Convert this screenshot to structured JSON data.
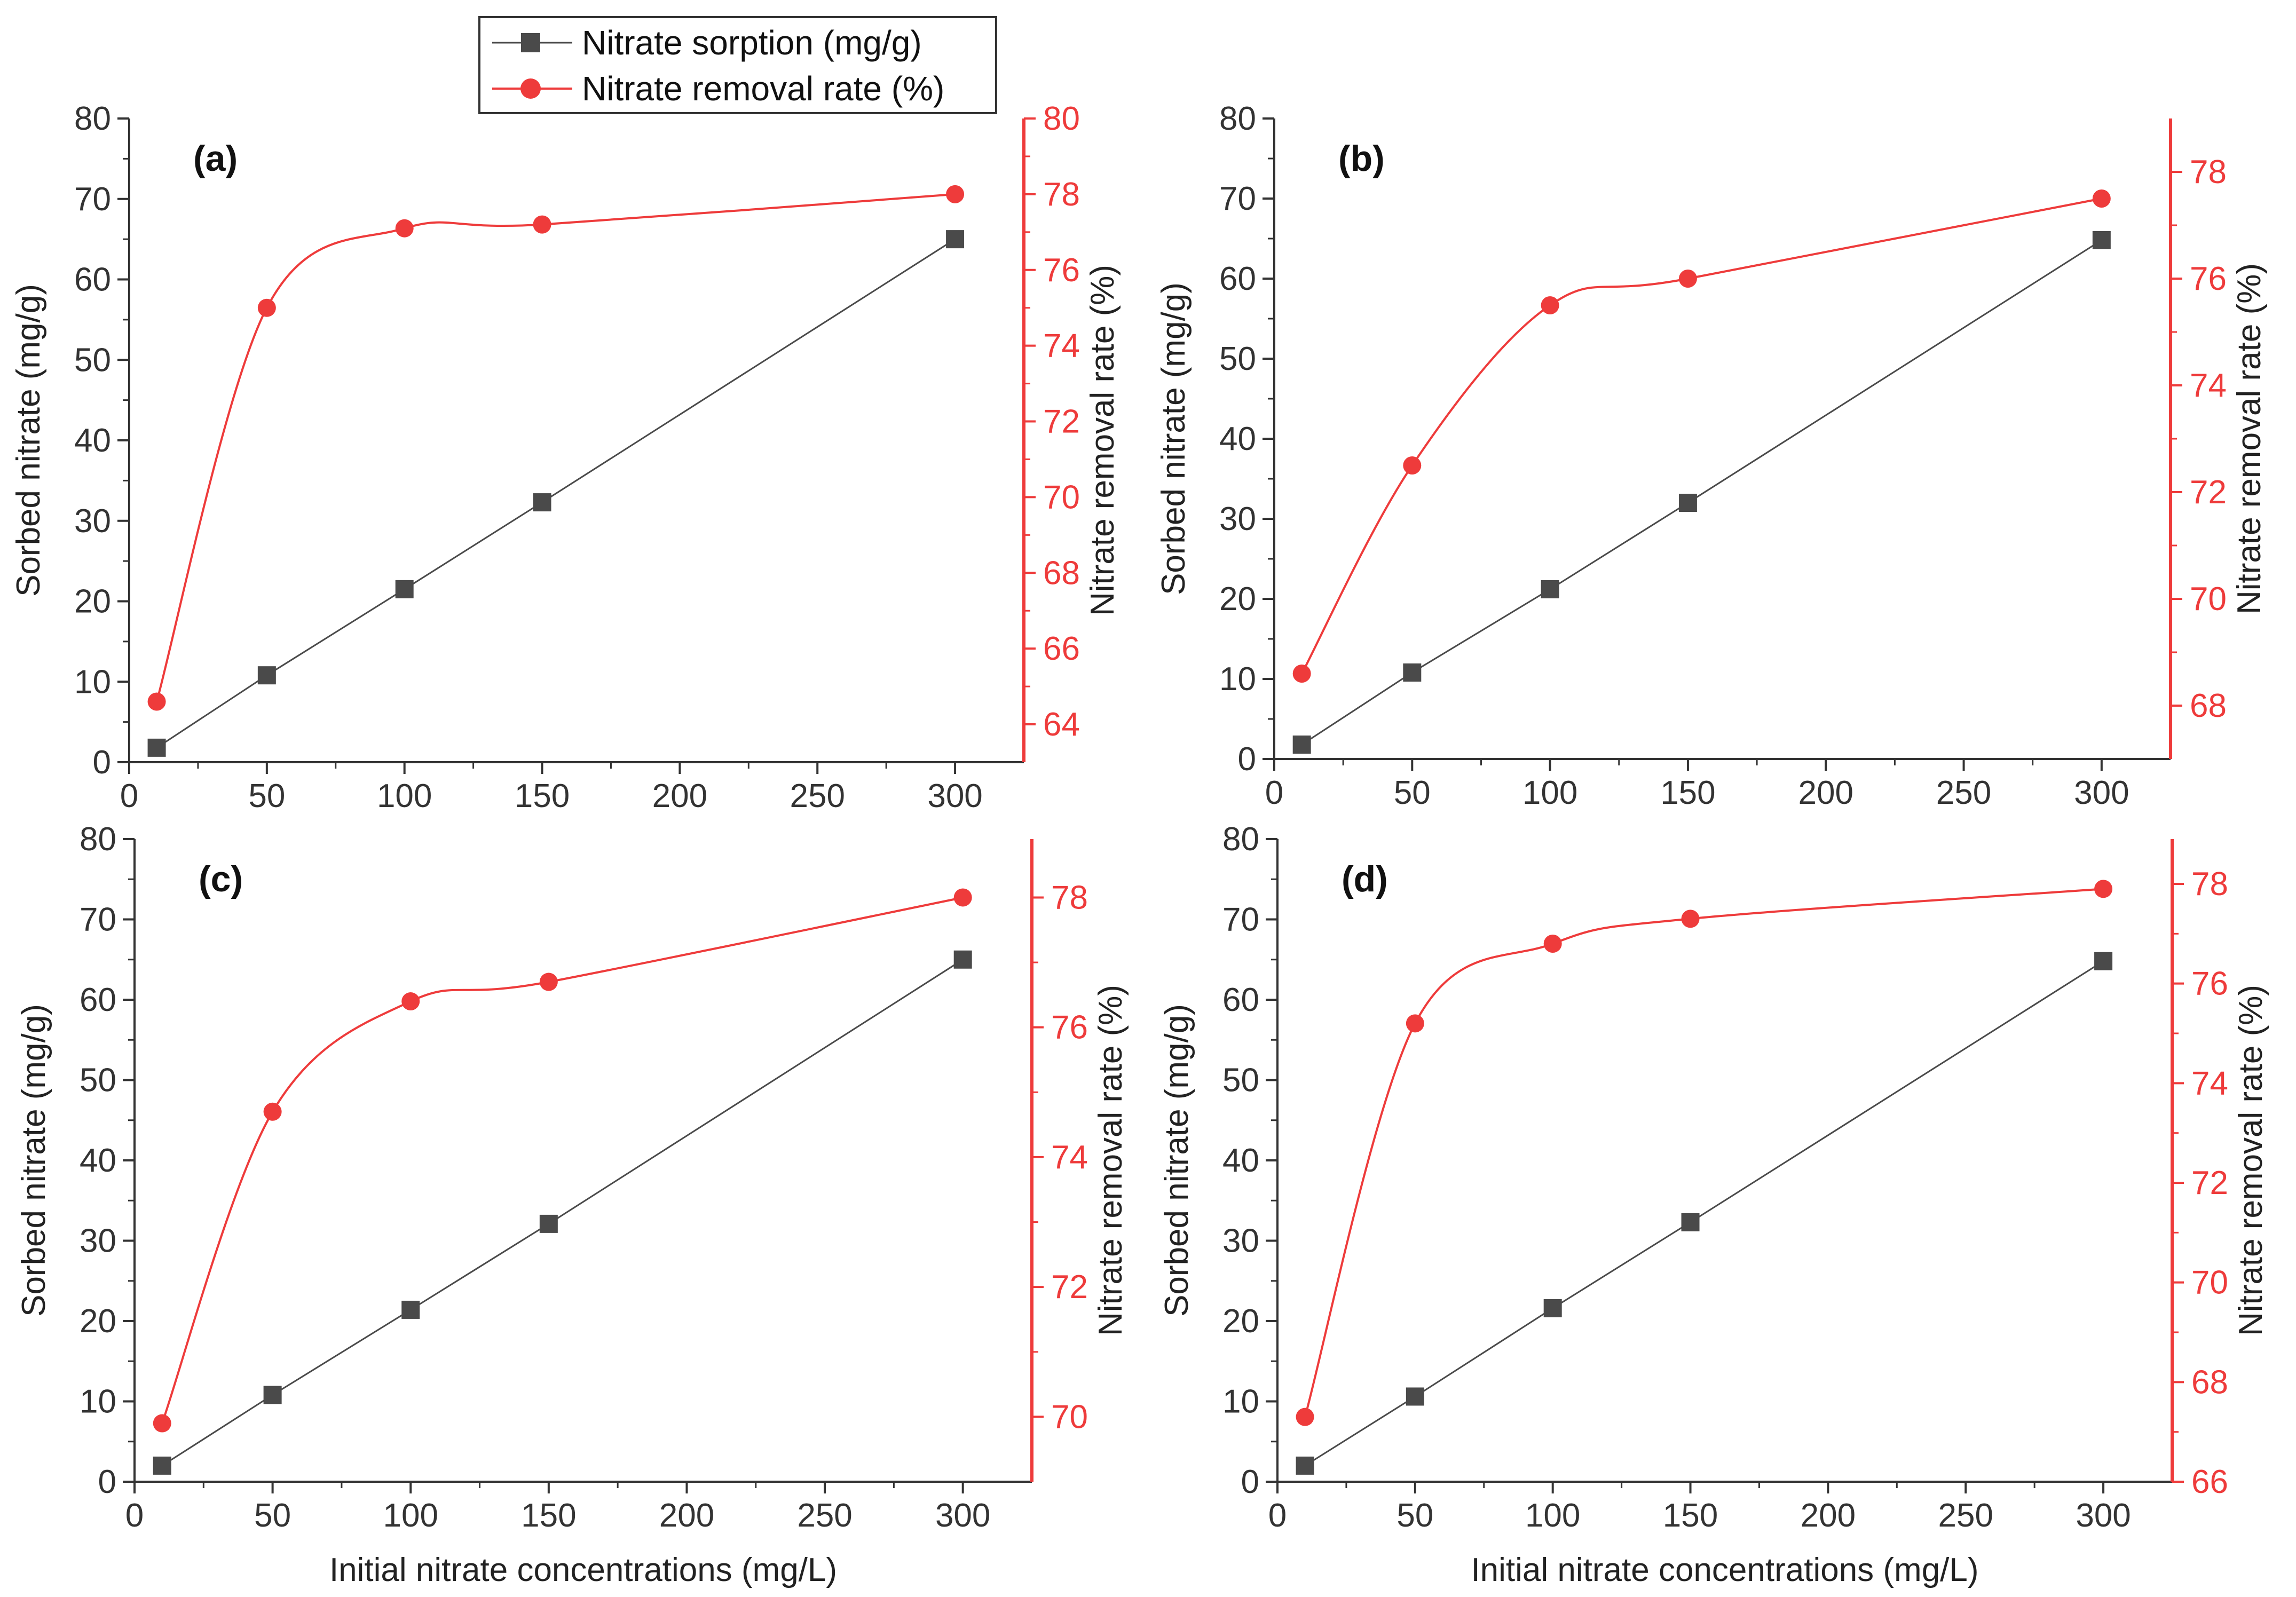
{
  "colors": {
    "sorption": "#4a4a4a",
    "removal": "#ee3b3b",
    "axis": "#333333",
    "right_axis": "#ee3b3b",
    "background": "#ffffff"
  },
  "legend": {
    "sorption_label": "Nitrate sorption (mg/g)",
    "removal_label": "Nitrate removal rate (%)"
  },
  "chart_data": [
    {
      "type": "line",
      "panel": "(a)",
      "x": [
        10,
        50,
        100,
        150,
        300
      ],
      "series": [
        {
          "name": "Nitrate sorption (mg/g)",
          "axis": "left",
          "values": [
            1.8,
            10.8,
            21.5,
            32.3,
            65.0
          ]
        },
        {
          "name": "Nitrate removal rate (%)",
          "axis": "right",
          "values": [
            64.6,
            75.0,
            77.1,
            77.2,
            78.0
          ]
        }
      ],
      "xlim": [
        0,
        325
      ],
      "xticks": [
        0,
        50,
        100,
        150,
        200,
        250,
        300
      ],
      "ylim": [
        0,
        80
      ],
      "yticks": [
        0,
        10,
        20,
        30,
        40,
        50,
        60,
        70,
        80
      ],
      "y2lim": [
        63,
        80
      ],
      "y2ticks": [
        64,
        66,
        68,
        70,
        72,
        74,
        76,
        78,
        80
      ],
      "ylabel": "Sorbed nitrate (mg/g)",
      "y2label": "Nitrate removal rate (%)",
      "xlabel": ""
    },
    {
      "type": "line",
      "panel": "(b)",
      "x": [
        10,
        50,
        100,
        150,
        300
      ],
      "series": [
        {
          "name": "Nitrate sorption (mg/g)",
          "axis": "left",
          "values": [
            1.8,
            10.8,
            21.2,
            32.0,
            64.8
          ]
        },
        {
          "name": "Nitrate removal rate (%)",
          "axis": "right",
          "values": [
            68.6,
            72.5,
            75.5,
            76.0,
            77.5
          ]
        }
      ],
      "xlim": [
        0,
        325
      ],
      "xticks": [
        0,
        50,
        100,
        150,
        200,
        250,
        300
      ],
      "ylim": [
        0,
        80
      ],
      "yticks": [
        0,
        10,
        20,
        30,
        40,
        50,
        60,
        70,
        80
      ],
      "y2lim": [
        67,
        79
      ],
      "y2ticks": [
        68,
        70,
        72,
        74,
        76,
        78
      ],
      "ylabel": "Sorbed nitrate (mg/g)",
      "y2label": "Nitrate removal rate (%)",
      "xlabel": ""
    },
    {
      "type": "line",
      "panel": "(c)",
      "x": [
        10,
        50,
        100,
        150,
        300
      ],
      "series": [
        {
          "name": "Nitrate sorption (mg/g)",
          "axis": "left",
          "values": [
            2.0,
            10.8,
            21.4,
            32.1,
            65.0
          ]
        },
        {
          "name": "Nitrate removal rate (%)",
          "axis": "right",
          "values": [
            69.9,
            74.7,
            76.4,
            76.7,
            78.0
          ]
        }
      ],
      "xlim": [
        0,
        325
      ],
      "xticks": [
        0,
        50,
        100,
        150,
        200,
        250,
        300
      ],
      "ylim": [
        0,
        80
      ],
      "yticks": [
        0,
        10,
        20,
        30,
        40,
        50,
        60,
        70,
        80
      ],
      "y2lim": [
        69.0,
        78.9
      ],
      "y2ticks": [
        70,
        72,
        74,
        76,
        78
      ],
      "ylabel": "Sorbed nitrate (mg/g)",
      "y2label": "Nitrate removal rate (%)",
      "xlabel": "Initial nitrate concentrations (mg/L)"
    },
    {
      "type": "line",
      "panel": "(d)",
      "x": [
        10,
        50,
        100,
        150,
        300
      ],
      "series": [
        {
          "name": "Nitrate sorption (mg/g)",
          "axis": "left",
          "values": [
            2.0,
            10.6,
            21.6,
            32.3,
            64.8
          ]
        },
        {
          "name": "Nitrate removal rate (%)",
          "axis": "right",
          "values": [
            67.3,
            75.2,
            76.8,
            77.3,
            77.9
          ]
        }
      ],
      "xlim": [
        0,
        325
      ],
      "xticks": [
        0,
        50,
        100,
        150,
        200,
        250,
        300
      ],
      "ylim": [
        0,
        80
      ],
      "yticks": [
        0,
        10,
        20,
        30,
        40,
        50,
        60,
        70,
        80
      ],
      "y2lim": [
        66,
        78.9
      ],
      "y2ticks": [
        66,
        68,
        70,
        72,
        74,
        76,
        78
      ],
      "ylabel": "Sorbed nitrate (mg/g)",
      "y2label": "Nitrate removal rate (%)",
      "xlabel": "Initial nitrate concentrations (mg/L)"
    }
  ]
}
